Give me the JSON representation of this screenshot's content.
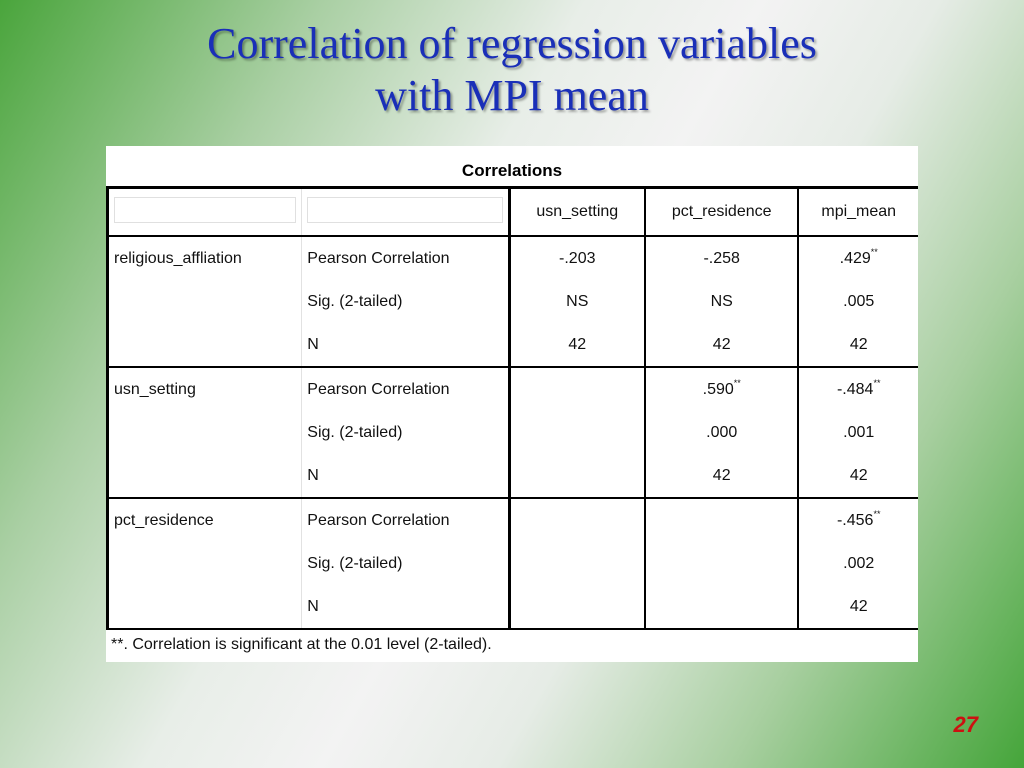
{
  "slide": {
    "title_line1": "Correlation of regression variables",
    "title_line2": "with MPI mean",
    "page_number": "27"
  },
  "table": {
    "title": "Correlations",
    "columns": [
      "usn_setting",
      "pct_residence",
      "mpi_mean"
    ],
    "rows": [
      {
        "var": "religious_affliation",
        "stat": "Pearson Correlation",
        "v1": "-.203",
        "v1_sup": "",
        "v2": "-.258",
        "v2_sup": "",
        "v3": ".429",
        "v3_sup": "**"
      },
      {
        "var": "",
        "stat": "Sig. (2-tailed)",
        "v1": "NS",
        "v1_sup": "",
        "v2": "NS",
        "v2_sup": "",
        "v3": ".005",
        "v3_sup": ""
      },
      {
        "var": "",
        "stat": "N",
        "v1": "42",
        "v1_sup": "",
        "v2": "42",
        "v2_sup": "",
        "v3": "42",
        "v3_sup": ""
      },
      {
        "var": "usn_setting",
        "stat": "Pearson Correlation",
        "v1": "",
        "v1_sup": "",
        "v2": ".590",
        "v2_sup": "**",
        "v3": "-.484",
        "v3_sup": "**"
      },
      {
        "var": "",
        "stat": "Sig. (2-tailed)",
        "v1": "",
        "v1_sup": "",
        "v2": ".000",
        "v2_sup": "",
        "v3": ".001",
        "v3_sup": ""
      },
      {
        "var": "",
        "stat": "N",
        "v1": "",
        "v1_sup": "",
        "v2": "42",
        "v2_sup": "",
        "v3": "42",
        "v3_sup": ""
      },
      {
        "var": "pct_residence",
        "stat": "Pearson Correlation",
        "v1": "",
        "v1_sup": "",
        "v2": "",
        "v2_sup": "",
        "v3": "-.456",
        "v3_sup": "**"
      },
      {
        "var": "",
        "stat": "Sig. (2-tailed)",
        "v1": "",
        "v1_sup": "",
        "v2": "",
        "v2_sup": "",
        "v3": ".002",
        "v3_sup": ""
      },
      {
        "var": "",
        "stat": "N",
        "v1": "",
        "v1_sup": "",
        "v2": "",
        "v2_sup": "",
        "v3": "42",
        "v3_sup": ""
      }
    ],
    "footnote": "**. Correlation is significant at the 0.01 level (2-tailed)."
  },
  "colors": {
    "title": "#1a2fb8",
    "page_number": "#cc1111",
    "background_green": "#45a53a"
  }
}
